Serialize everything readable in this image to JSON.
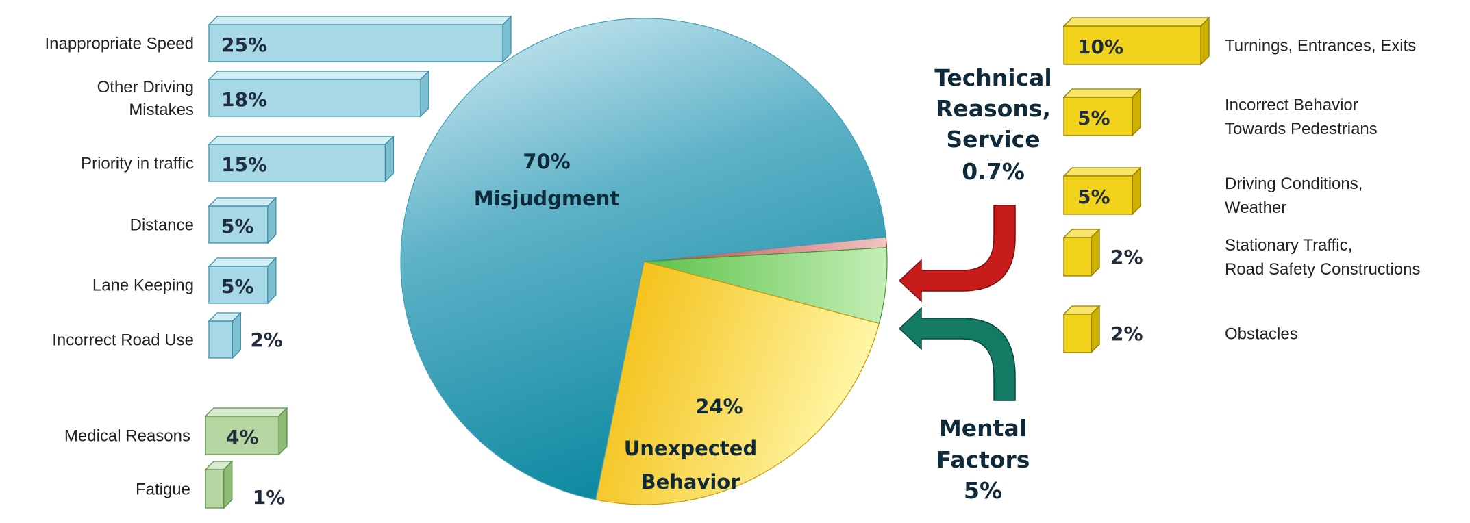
{
  "colors": {
    "blue_front": "#a7d8e6",
    "blue_top": "#d2edf4",
    "blue_side": "#7fbfd2",
    "blue_stroke": "#3b8ea6",
    "green_front": "#b5d6a0",
    "green_top": "#d8ead0",
    "green_side": "#8fbd78",
    "green_stroke": "#5d8f48",
    "yellow_front": "#f2d21a",
    "yellow_top": "#f8e66a",
    "yellow_side": "#cfb000",
    "yellow_stroke": "#8f7b00",
    "pie_misjudgment": "#3f9fb9",
    "pie_unexpected": "#f5c400",
    "pie_mental": "#7fcf6a",
    "pie_technical": "#c96060",
    "arrow_red": "#c81c1c",
    "arrow_teal": "#137a63"
  },
  "chart_data": [
    {
      "type": "pie",
      "slices": [
        {
          "name": "Misjudgment",
          "pct_label": "70%",
          "value": 70
        },
        {
          "name": "Unexpected Behavior",
          "pct_label": "24%",
          "value": 24
        },
        {
          "name": "Mental Factors",
          "pct_label": "5%",
          "value": 5
        },
        {
          "name": "Technical Reasons, Service",
          "pct_label": "0.7%",
          "value": 0.7
        }
      ],
      "labels": {
        "misjudgment": [
          "70%",
          "Misjudgment"
        ],
        "unexpected": [
          "24%",
          "Unexpected",
          "Behavior"
        ],
        "technical": [
          "Technical",
          "Reasons,",
          "Service",
          "0.7%"
        ],
        "mental": [
          "Mental",
          "Factors",
          "5%"
        ]
      }
    },
    {
      "type": "bar",
      "group": "Misjudgment",
      "orientation": "horizontal",
      "categories": [
        [
          "Inappropriate Speed"
        ],
        [
          "Other Driving",
          "Mistakes"
        ],
        [
          "Priority in traffic"
        ],
        [
          "Distance"
        ],
        [
          "Lane Keeping"
        ],
        [
          "Incorrect Road Use"
        ]
      ],
      "values": [
        25,
        18,
        15,
        5,
        5,
        2
      ],
      "value_labels": [
        "25%",
        "18%",
        "15%",
        "5%",
        "5%",
        "2%"
      ]
    },
    {
      "type": "bar",
      "group": "Mental Factors",
      "orientation": "horizontal",
      "categories": [
        [
          "Medical Reasons"
        ],
        [
          "Fatigue"
        ]
      ],
      "values": [
        4,
        1
      ],
      "value_labels": [
        "4%",
        "1%"
      ]
    },
    {
      "type": "bar",
      "group": "Unexpected Behavior",
      "orientation": "horizontal",
      "categories": [
        [
          "Turnings, Entrances, Exits"
        ],
        [
          "Incorrect Behavior",
          "Towards Pedestrians"
        ],
        [
          "Driving Conditions,",
          "Weather"
        ],
        [
          "Stationary Traffic,",
          "Road Safety Constructions"
        ],
        [
          "Obstacles"
        ]
      ],
      "values": [
        10,
        5,
        5,
        2,
        2
      ],
      "value_labels": [
        "10%",
        "5%",
        "5%",
        "2%",
        "2%"
      ]
    }
  ]
}
